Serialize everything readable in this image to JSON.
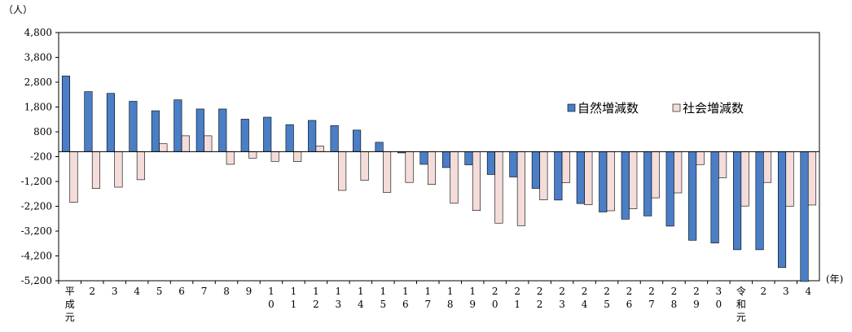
{
  "chart_data": {
    "type": "bar",
    "ylabel": "（人）",
    "xlabel": "(年)",
    "ylim": [
      -5200,
      4800
    ],
    "yticks": [
      4800,
      3800,
      2800,
      1800,
      800,
      -200,
      -1200,
      -2200,
      -3200,
      -4200,
      -5200
    ],
    "ytick_labels": [
      "4,800",
      "3,800",
      "2,800",
      "1,800",
      "800",
      "-200",
      "-1,200",
      "-2,200",
      "-3,200",
      "-4,200",
      "-5,200"
    ],
    "categories": [
      "平成元",
      "2",
      "3",
      "4",
      "5",
      "6",
      "7",
      "8",
      "9",
      "10",
      "11",
      "12",
      "13",
      "14",
      "15",
      "16",
      "17",
      "18",
      "19",
      "20",
      "21",
      "22",
      "23",
      "24",
      "25",
      "26",
      "27",
      "28",
      "29",
      "30",
      "令和元",
      "2",
      "3",
      "4"
    ],
    "legend_position": "top-right",
    "grid": false,
    "series": [
      {
        "name": "自然増減数",
        "color": "#4a7ec6",
        "values": [
          3050,
          2420,
          2350,
          2030,
          1650,
          2090,
          1720,
          1720,
          1310,
          1390,
          1090,
          1260,
          1050,
          870,
          380,
          -50,
          -510,
          -640,
          -530,
          -920,
          -1020,
          -1480,
          -1950,
          -2090,
          -2430,
          -2720,
          -2590,
          -3000,
          -3570,
          -3680,
          -3950,
          -3950,
          -4670,
          -5230
        ]
      },
      {
        "name": "社会増減数",
        "color": "#f3dcd9",
        "values": [
          -2040,
          -1480,
          -1430,
          -1130,
          320,
          640,
          640,
          -510,
          -260,
          -390,
          -400,
          230,
          -1560,
          -1150,
          -1640,
          -1240,
          -1320,
          -2080,
          -2370,
          -2880,
          -2980,
          -1940,
          -1250,
          -2140,
          -2380,
          -2300,
          -1860,
          -1660,
          -520,
          -1050,
          -2190,
          -1240,
          -2200,
          -2150
        ]
      }
    ]
  }
}
